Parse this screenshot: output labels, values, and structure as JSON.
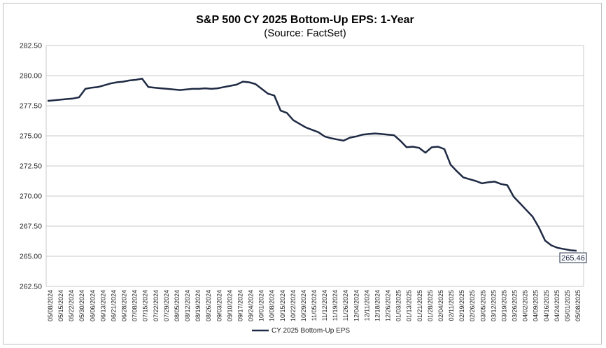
{
  "chart_data": {
    "type": "line",
    "title": "S&P 500 CY 2025 Bottom-Up  EPS: 1-Year",
    "subtitle": "(Source: FactSet)",
    "ylim": [
      262.5,
      282.5
    ],
    "yticks": [
      "282.50",
      "280.00",
      "277.50",
      "275.00",
      "272.50",
      "270.00",
      "267.50",
      "265.00",
      "262.50"
    ],
    "ytick_values": [
      282.5,
      280,
      277.5,
      275,
      272.5,
      270,
      267.5,
      265,
      262.5
    ],
    "x_tick_labels": [
      "05/08/2024",
      "05/15/2024",
      "05/22/2024",
      "05/30/2024",
      "06/06/2024",
      "06/13/2024",
      "06/21/2024",
      "06/28/2024",
      "07/08/2024",
      "07/15/2024",
      "07/22/2024",
      "07/29/2024",
      "08/05/2024",
      "08/12/2024",
      "08/19/2024",
      "08/26/2024",
      "09/03/2024",
      "09/10/2024",
      "09/17/2024",
      "09/24/2024",
      "10/01/2024",
      "10/08/2024",
      "10/15/2024",
      "10/22/2024",
      "10/29/2024",
      "11/05/2024",
      "11/12/2024",
      "11/19/2024",
      "11/26/2024",
      "12/04/2024",
      "12/11/2024",
      "12/18/2024",
      "12/26/2024",
      "01/03/2025",
      "01/13/2025",
      "01/21/2025",
      "01/28/2025",
      "02/04/2025",
      "02/11/2025",
      "02/19/2025",
      "02/26/2025",
      "03/05/2025",
      "03/12/2025",
      "03/19/2025",
      "03/26/2025",
      "04/02/2025",
      "04/09/2025",
      "04/16/2025",
      "04/24/2025",
      "05/01/2025",
      "05/08/2025"
    ],
    "grid": true,
    "legend": "bottom-center",
    "last_value_label": "265.46",
    "series": [
      {
        "name": "CY 2025 Bottom-Up EPS",
        "color": "#1f2a44",
        "values": [
          277.9,
          277.95,
          278.0,
          278.05,
          278.1,
          278.2,
          278.9,
          279.0,
          279.05,
          279.2,
          279.35,
          279.45,
          279.5,
          279.6,
          279.65,
          279.75,
          279.05,
          279.0,
          278.95,
          278.9,
          278.85,
          278.8,
          278.85,
          278.9,
          278.9,
          278.95,
          278.9,
          278.95,
          279.05,
          279.15,
          279.25,
          279.5,
          279.45,
          279.3,
          278.9,
          278.5,
          278.35,
          277.1,
          276.9,
          276.3,
          276.0,
          275.7,
          275.5,
          275.3,
          274.95,
          274.8,
          274.7,
          274.6,
          274.85,
          274.95,
          275.1,
          275.15,
          275.2,
          275.15,
          275.1,
          275.05,
          274.6,
          274.05,
          274.1,
          274.0,
          273.6,
          274.05,
          274.1,
          273.9,
          272.6,
          272.05,
          271.55,
          271.4,
          271.25,
          271.05,
          271.15,
          271.2,
          271.0,
          270.9,
          269.95,
          269.4,
          268.85,
          268.3,
          267.4,
          266.3,
          265.9,
          265.7,
          265.6,
          265.5,
          265.46
        ]
      }
    ]
  }
}
